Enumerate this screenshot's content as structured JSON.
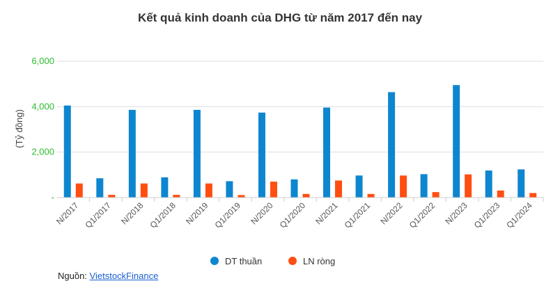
{
  "chart_data": {
    "type": "bar",
    "title": "Kết quả kinh doanh của DHG từ năm 2017 đến nay",
    "ylabel": "(Tỷ đồng)",
    "xlabel": "",
    "ylim": [
      0,
      6000
    ],
    "yticks": [
      {
        "value": 0,
        "label": "-"
      },
      {
        "value": 2000,
        "label": "2,000"
      },
      {
        "value": 4000,
        "label": "4,000"
      },
      {
        "value": 6000,
        "label": "6,000"
      }
    ],
    "grid": true,
    "legend_position": "bottom",
    "categories": [
      "N/2017",
      "Q1/2017",
      "N/2018",
      "Q1/2018",
      "N/2019",
      "Q1/2019",
      "N/2020",
      "Q1/2020",
      "N/2021",
      "Q1/2021",
      "N/2022",
      "Q1/2022",
      "N/2023",
      "Q1/2023",
      "Q1/2024"
    ],
    "series": [
      {
        "name": "DT thuần",
        "color": "#0e86cf",
        "values": [
          4050,
          850,
          3860,
          890,
          3860,
          720,
          3740,
          800,
          3960,
          970,
          4640,
          1030,
          4950,
          1190,
          1240
        ]
      },
      {
        "name": "LN ròng",
        "color": "#ff4e12",
        "values": [
          620,
          120,
          620,
          120,
          620,
          110,
          700,
          160,
          750,
          160,
          970,
          240,
          1020,
          310,
          200
        ]
      }
    ]
  },
  "source": {
    "label": "Nguồn:",
    "link_text": "VietstockFinance"
  }
}
